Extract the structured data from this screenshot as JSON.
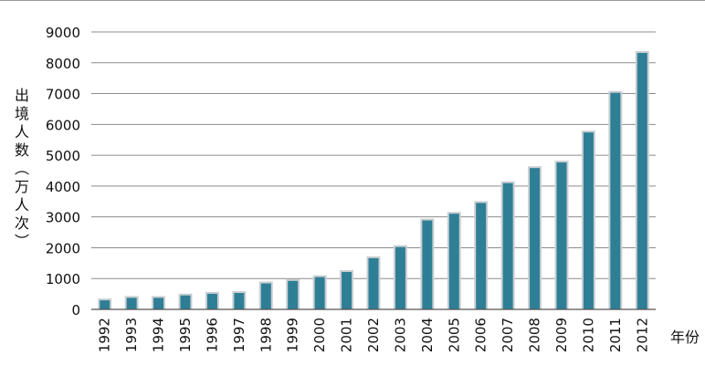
{
  "chart_data": {
    "type": "bar",
    "categories": [
      "1992",
      "1993",
      "1994",
      "1995",
      "1996",
      "1997",
      "1998",
      "1999",
      "2000",
      "2001",
      "2002",
      "2003",
      "2004",
      "2005",
      "2006",
      "2007",
      "2008",
      "2009",
      "2010",
      "2011",
      "2012"
    ],
    "values": [
      293,
      374,
      373,
      452,
      506,
      532,
      843,
      923,
      1047,
      1213,
      1660,
      2022,
      2885,
      3103,
      3452,
      4095,
      4584,
      4766,
      5739,
      7025,
      8318
    ],
    "title": "",
    "ylabel": "出境人数（万人次）",
    "xlabel": "年份",
    "ylim": [
      0,
      9000
    ],
    "yticks": [
      0,
      1000,
      2000,
      3000,
      4000,
      5000,
      6000,
      7000,
      8000,
      9000
    ],
    "grid": true,
    "colors": {
      "bar": "#2e7f96",
      "bar_shadow": "#c9cfd2",
      "grid": "#8c8c8c",
      "axis": "#555555"
    }
  }
}
